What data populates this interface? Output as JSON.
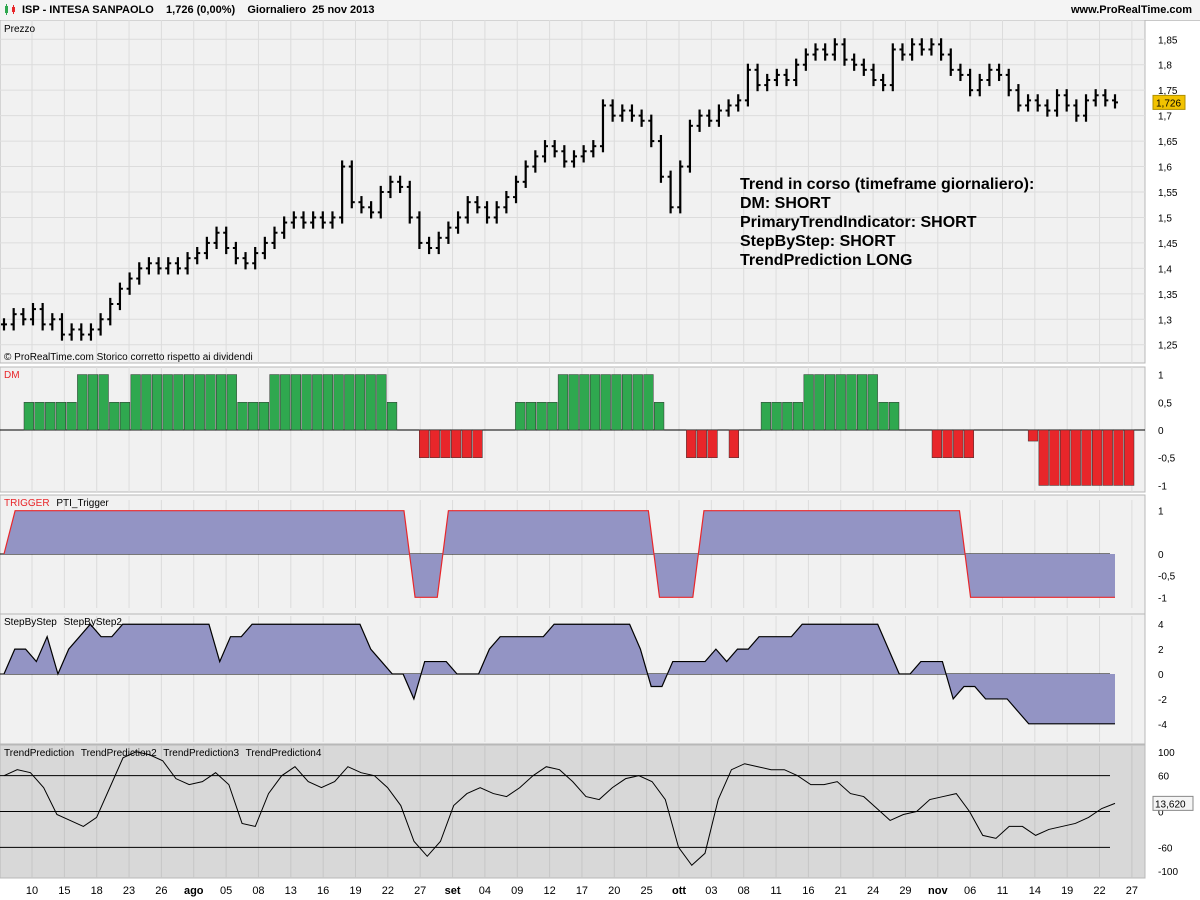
{
  "header": {
    "title": "ISP - INTESA SANPAOLO    1,726 (0,00%)    Giornaliero  25 nov 2013",
    "site": "www.ProRealTime.com"
  },
  "colors": {
    "green": "#2fa84f",
    "red": "#e8262a",
    "area": "#9394c4",
    "gray_area": "#8a8a8a"
  },
  "chart_data": [
    {
      "type": "ohlc",
      "panel_label": "Prezzo",
      "footnote": "© ProRealTime.com  Storico corretto rispetto ai dividendi",
      "ylim": [
        1.22,
        1.88
      ],
      "yticks": [
        "1,85",
        "1,8",
        "1,75",
        "1,7",
        "1,65",
        "1,6",
        "1,55",
        "1,5",
        "1,45",
        "1,4",
        "1,35",
        "1,3",
        "1,25"
      ],
      "ytick_values": [
        1.85,
        1.8,
        1.75,
        1.7,
        1.65,
        1.6,
        1.55,
        1.5,
        1.45,
        1.4,
        1.35,
        1.3,
        1.25
      ],
      "last_price": "1,726",
      "last_value": 1.726,
      "closes": [
        1.29,
        1.31,
        1.3,
        1.32,
        1.29,
        1.3,
        1.27,
        1.28,
        1.27,
        1.28,
        1.3,
        1.33,
        1.36,
        1.38,
        1.4,
        1.41,
        1.4,
        1.41,
        1.4,
        1.42,
        1.43,
        1.45,
        1.47,
        1.44,
        1.42,
        1.41,
        1.43,
        1.45,
        1.47,
        1.49,
        1.5,
        1.49,
        1.5,
        1.49,
        1.5,
        1.6,
        1.53,
        1.52,
        1.51,
        1.55,
        1.57,
        1.56,
        1.5,
        1.45,
        1.44,
        1.46,
        1.48,
        1.5,
        1.53,
        1.52,
        1.5,
        1.52,
        1.54,
        1.57,
        1.6,
        1.62,
        1.64,
        1.63,
        1.61,
        1.62,
        1.63,
        1.64,
        1.72,
        1.7,
        1.71,
        1.7,
        1.69,
        1.65,
        1.58,
        1.52,
        1.6,
        1.68,
        1.7,
        1.69,
        1.71,
        1.72,
        1.73,
        1.79,
        1.76,
        1.77,
        1.78,
        1.77,
        1.8,
        1.82,
        1.83,
        1.82,
        1.84,
        1.81,
        1.8,
        1.79,
        1.77,
        1.76,
        1.83,
        1.82,
        1.84,
        1.83,
        1.84,
        1.82,
        1.79,
        1.78,
        1.75,
        1.77,
        1.79,
        1.78,
        1.75,
        1.72,
        1.73,
        1.72,
        1.71,
        1.74,
        1.72,
        1.7,
        1.73,
        1.74,
        1.73,
        1.726
      ],
      "annotation": [
        "Trend in corso (timeframe giornaliero):",
        "DM: SHORT",
        "PrimaryTrendIndicator: SHORT",
        "StepByStep: SHORT",
        "TrendPrediction LONG"
      ]
    },
    {
      "type": "bar",
      "panel_label": "DM",
      "ylim": [
        -1.1,
        1.1
      ],
      "yticks": [
        "1",
        "0,5",
        "0",
        "-0,5",
        "-1"
      ],
      "ytick_values": [
        1,
        0.5,
        0,
        -0.5,
        -1
      ],
      "values": [
        0.5,
        0.5,
        0.5,
        0.5,
        0.5,
        1,
        1,
        1,
        0.5,
        0.5,
        1,
        1,
        1,
        1,
        1,
        1,
        1,
        1,
        1,
        1,
        0.5,
        0.5,
        0.5,
        1,
        1,
        1,
        1,
        1,
        1,
        1,
        1,
        1,
        1,
        1,
        0.5,
        0,
        0,
        -0.5,
        -0.5,
        -0.5,
        -0.5,
        -0.5,
        -0.5,
        0,
        0,
        0,
        0.5,
        0.5,
        0.5,
        0.5,
        1,
        1,
        1,
        1,
        1,
        1,
        1,
        1,
        1,
        0.5,
        0,
        0,
        -0.5,
        -0.5,
        -0.5,
        0,
        -0.5,
        0,
        0,
        0.5,
        0.5,
        0.5,
        0.5,
        1,
        1,
        1,
        1,
        1,
        1,
        1,
        0.5,
        0.5,
        0,
        0,
        0,
        -0.5,
        -0.5,
        -0.5,
        -0.5,
        0,
        0,
        0,
        0,
        0,
        -0.2,
        -1,
        -1,
        -1,
        -1,
        -1,
        -1,
        -1,
        -1,
        -1
      ]
    },
    {
      "type": "area",
      "panel_label": "TRIGGER",
      "series_name": "PTI_Trigger",
      "ylim": [
        -1.2,
        1.2
      ],
      "yticks": [
        "1",
        "0",
        "-0,5",
        "-1"
      ],
      "ytick_values": [
        1,
        0,
        -0.5,
        -1
      ],
      "values": [
        0,
        1,
        1,
        1,
        1,
        1,
        1,
        1,
        1,
        1,
        1,
        1,
        1,
        1,
        1,
        1,
        1,
        1,
        1,
        1,
        1,
        1,
        1,
        1,
        1,
        1,
        1,
        1,
        1,
        1,
        1,
        1,
        1,
        1,
        1,
        1,
        1,
        -1,
        -1,
        -1,
        1,
        1,
        1,
        1,
        1,
        1,
        1,
        1,
        1,
        1,
        1,
        1,
        1,
        1,
        1,
        1,
        1,
        1,
        1,
        -1,
        -1,
        -1,
        -1,
        1,
        1,
        1,
        1,
        1,
        1,
        1,
        1,
        1,
        1,
        1,
        1,
        1,
        1,
        1,
        1,
        1,
        1,
        1,
        1,
        1,
        1,
        1,
        1,
        -1,
        -1,
        -1,
        -1,
        -1,
        -1,
        -1,
        -1,
        -1,
        -1,
        -1,
        -1,
        -1,
        -1
      ]
    },
    {
      "type": "area",
      "panel_label": "StepByStep",
      "series_name": "StepByStep2",
      "ylim": [
        -5.3,
        4.5
      ],
      "yticks": [
        "4",
        "2",
        "0",
        "-2",
        "-4"
      ],
      "ytick_values": [
        4,
        2,
        0,
        -2,
        -4
      ],
      "values": [
        0,
        2,
        2,
        1,
        3,
        0,
        2,
        3,
        4,
        3,
        3,
        4,
        4,
        4,
        4,
        4,
        4,
        4,
        4,
        4,
        1,
        3,
        3,
        4,
        4,
        4,
        4,
        4,
        4,
        4,
        4,
        4,
        4,
        4,
        2,
        1,
        0,
        0,
        -2,
        1,
        1,
        1,
        0,
        0,
        0,
        2,
        3,
        3,
        3,
        3,
        3,
        4,
        4,
        4,
        4,
        4,
        4,
        4,
        4,
        2,
        -1,
        -1,
        1,
        1,
        1,
        1,
        2,
        1,
        2,
        2,
        3,
        3,
        3,
        3,
        4,
        4,
        4,
        4,
        4,
        4,
        4,
        4,
        2,
        0,
        0,
        1,
        1,
        1,
        -2,
        -1,
        -1,
        -2,
        -2,
        -2,
        -3,
        -4,
        -4,
        -4,
        -4,
        -4,
        -4,
        -4,
        -4,
        -4
      ]
    },
    {
      "type": "line",
      "panel_label": "TrendPrediction",
      "series_names": [
        "TrendPrediction2",
        "TrendPrediction3",
        "TrendPrediction4"
      ],
      "ylim": [
        -108,
        108
      ],
      "yticks": [
        "100",
        "60",
        "0",
        "-60",
        "-100"
      ],
      "ytick_values": [
        100,
        60,
        0,
        -60,
        -100
      ],
      "levels": [
        60,
        0,
        -60
      ],
      "last_value_label": "13,620",
      "values": [
        60,
        70,
        65,
        40,
        -5,
        -15,
        -25,
        -10,
        40,
        90,
        100,
        95,
        85,
        55,
        45,
        50,
        65,
        45,
        -20,
        -25,
        30,
        60,
        75,
        50,
        40,
        50,
        75,
        65,
        60,
        40,
        10,
        -50,
        -75,
        -50,
        10,
        30,
        40,
        30,
        25,
        40,
        60,
        75,
        70,
        50,
        25,
        20,
        40,
        55,
        60,
        50,
        20,
        -60,
        -90,
        -70,
        20,
        70,
        80,
        75,
        70,
        70,
        60,
        45,
        45,
        50,
        30,
        25,
        5,
        -15,
        -5,
        0,
        20,
        25,
        30,
        0,
        -40,
        -45,
        -25,
        -25,
        -40,
        -30,
        -25,
        -20,
        -10,
        5,
        13.62
      ],
      "xtick_labels": [
        "10",
        "15",
        "18",
        "23",
        "26",
        "ago",
        "05",
        "08",
        "13",
        "16",
        "19",
        "22",
        "27",
        "set",
        "04",
        "09",
        "12",
        "17",
        "20",
        "25",
        "ott",
        "03",
        "08",
        "11",
        "16",
        "21",
        "24",
        "29",
        "nov",
        "06",
        "11",
        "14",
        "19",
        "22",
        "27"
      ],
      "month_labels": [
        "ago",
        "set",
        "ott",
        "nov"
      ]
    }
  ]
}
